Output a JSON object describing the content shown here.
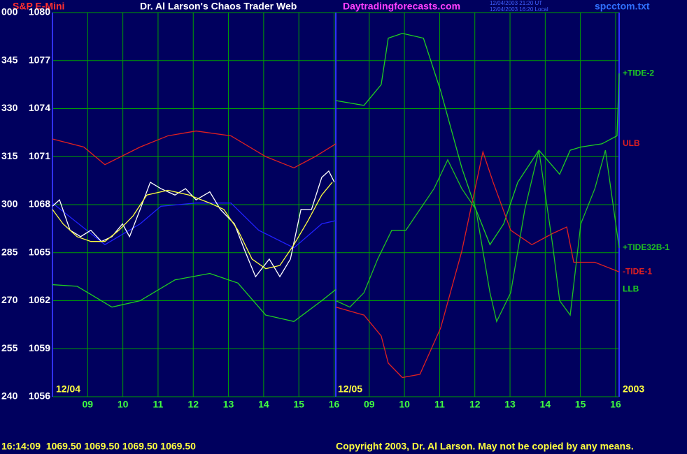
{
  "chart_data": {
    "type": "line",
    "title": "S&P E-Mini",
    "subtitle": "Dr. Al Larson's Chaos Trader Web",
    "website": "Daytradingforecasts.com",
    "timestamp_ut": "12/04/2003 21:20 UT",
    "timestamp_local": "12/04/2003 16:20 Local",
    "file_name": "spcctom.txt",
    "day_labels": [
      "12/04",
      "12/05"
    ],
    "year_label": "2003",
    "status_line": "16:14:09  1069.50 1069.50 1069.50 1069.50",
    "copyright": "Copyright 2003, Dr. Al Larson. May not be copied by any means.",
    "xlim": [
      8,
      24.1
    ],
    "xticks": [
      {
        "value": 9,
        "label": "09"
      },
      10,
      11,
      12,
      13,
      14,
      15,
      16,
      {
        "value": 17,
        "label": "09"
      },
      {
        "value": 18,
        "label": "10"
      },
      {
        "value": 19,
        "label": "11"
      },
      {
        "value": 20,
        "label": "12"
      },
      {
        "value": 21,
        "label": "13"
      },
      {
        "value": 22,
        "label": "14"
      },
      {
        "value": 23,
        "label": "15"
      },
      {
        "value": 24,
        "label": "16"
      }
    ],
    "ylim": [
      1056,
      1080
    ],
    "yticks": [
      1080,
      1077,
      1074,
      1071,
      1068,
      1065,
      1062,
      1059,
      1056
    ],
    "degree_labels": [
      "000",
      "345",
      "330",
      "315",
      "300",
      "285",
      "270",
      "255",
      "240"
    ],
    "grid": true,
    "grid_color": "#00a000",
    "background": "#00005e",
    "series": [
      {
        "name": "ULB",
        "color": "#e02020",
        "x": [
          8.0,
          8.89,
          9.49,
          10.49,
          11.28,
          12.08,
          13.07,
          14.06,
          14.86,
          15.46,
          16.05
        ],
        "values": [
          1072.1,
          1071.6,
          1070.5,
          1071.6,
          1072.3,
          1072.6,
          1072.3,
          1071.0,
          1070.3,
          1071.0,
          1071.8
        ]
      },
      {
        "name": "LLB",
        "color": "#20d020",
        "x": [
          8.0,
          8.7,
          9.69,
          10.49,
          11.48,
          12.47,
          13.27,
          14.06,
          14.86,
          15.65,
          16.05
        ],
        "values": [
          1063.0,
          1062.9,
          1061.6,
          1062.0,
          1063.3,
          1063.7,
          1063.1,
          1061.1,
          1060.7,
          1062.0,
          1062.7
        ]
      },
      {
        "color": "#2020ff",
        "x": [
          8.0,
          9.49,
          10.49,
          11.08,
          12.08,
          13.07,
          13.86,
          14.86,
          15.65,
          16.05
        ],
        "values": [
          1068.1,
          1065.5,
          1066.8,
          1067.9,
          1068.1,
          1068.1,
          1066.4,
          1065.3,
          1066.8,
          1067.0
        ]
      },
      {
        "color": "#ffffff",
        "x": [
          8.0,
          8.2,
          8.5,
          8.8,
          9.09,
          9.39,
          9.69,
          9.99,
          10.19,
          10.49,
          10.78,
          11.08,
          11.48,
          11.78,
          12.08,
          12.47,
          12.77,
          13.17,
          13.47,
          13.77,
          14.16,
          14.46,
          14.76,
          15.06,
          15.36,
          15.65,
          15.85,
          16.01
        ],
        "values": [
          1067.9,
          1068.3,
          1066.4,
          1066.0,
          1066.4,
          1065.7,
          1066.0,
          1066.8,
          1066.0,
          1067.7,
          1069.4,
          1069.0,
          1068.6,
          1069.0,
          1068.3,
          1068.8,
          1067.7,
          1066.8,
          1065.1,
          1063.5,
          1064.6,
          1063.5,
          1064.6,
          1067.7,
          1067.7,
          1069.7,
          1070.1,
          1069.4
        ]
      },
      {
        "color": "#ffff40",
        "x": [
          8.0,
          8.3,
          8.7,
          9.09,
          9.49,
          9.89,
          10.29,
          10.68,
          11.28,
          11.88,
          12.47,
          12.87,
          13.27,
          13.67,
          14.06,
          14.46,
          14.86,
          15.26,
          15.65,
          15.95
        ],
        "values": [
          1067.7,
          1066.8,
          1066.0,
          1065.7,
          1065.7,
          1066.4,
          1067.3,
          1068.6,
          1068.9,
          1068.6,
          1068.1,
          1067.7,
          1066.4,
          1064.6,
          1064.0,
          1064.2,
          1065.5,
          1067.0,
          1068.6,
          1069.4
        ]
      },
      {
        "name": "+TIDE-2",
        "color": "#20d020",
        "x": [
          16.05,
          16.85,
          17.34,
          17.54,
          17.94,
          18.54,
          19.03,
          19.63,
          20.03,
          20.43,
          20.82,
          21.22,
          21.82,
          22.41,
          22.71,
          23.01,
          23.61,
          24.04,
          24.1
        ],
        "values": [
          1074.5,
          1074.2,
          1075.5,
          1078.4,
          1078.7,
          1078.4,
          1075.1,
          1070.3,
          1067.7,
          1065.5,
          1066.8,
          1069.4,
          1071.4,
          1069.9,
          1071.4,
          1071.6,
          1071.8,
          1072.3,
          1076.2
        ]
      },
      {
        "name": "-TIDE-1",
        "color": "#e02020",
        "x": [
          16.05,
          16.85,
          17.34,
          17.54,
          17.94,
          18.44,
          19.03,
          19.63,
          20.23,
          20.52,
          21.02,
          21.62,
          22.21,
          22.61,
          22.81,
          23.41,
          24.1
        ],
        "values": [
          1061.6,
          1061.1,
          1059.8,
          1058.1,
          1057.2,
          1057.4,
          1060.3,
          1065.1,
          1071.3,
          1069.4,
          1066.4,
          1065.5,
          1066.2,
          1066.6,
          1064.4,
          1064.4,
          1063.8
        ]
      },
      {
        "name": "+TIDE32B-1",
        "color": "#20c020",
        "x": [
          16.05,
          16.45,
          16.85,
          17.24,
          17.64,
          18.04,
          18.44,
          18.84,
          19.23,
          19.63,
          20.03,
          20.43,
          20.62,
          21.02,
          21.42,
          21.82,
          22.21,
          22.41,
          22.71,
          23.01,
          23.41,
          23.71,
          24.1
        ],
        "values": [
          1062.0,
          1061.6,
          1062.5,
          1064.6,
          1066.4,
          1066.4,
          1067.7,
          1069.0,
          1070.8,
          1069.0,
          1067.7,
          1062.5,
          1060.7,
          1062.5,
          1067.7,
          1071.4,
          1065.5,
          1062.0,
          1061.1,
          1066.8,
          1069.0,
          1071.4,
          1065.3
        ]
      }
    ]
  }
}
